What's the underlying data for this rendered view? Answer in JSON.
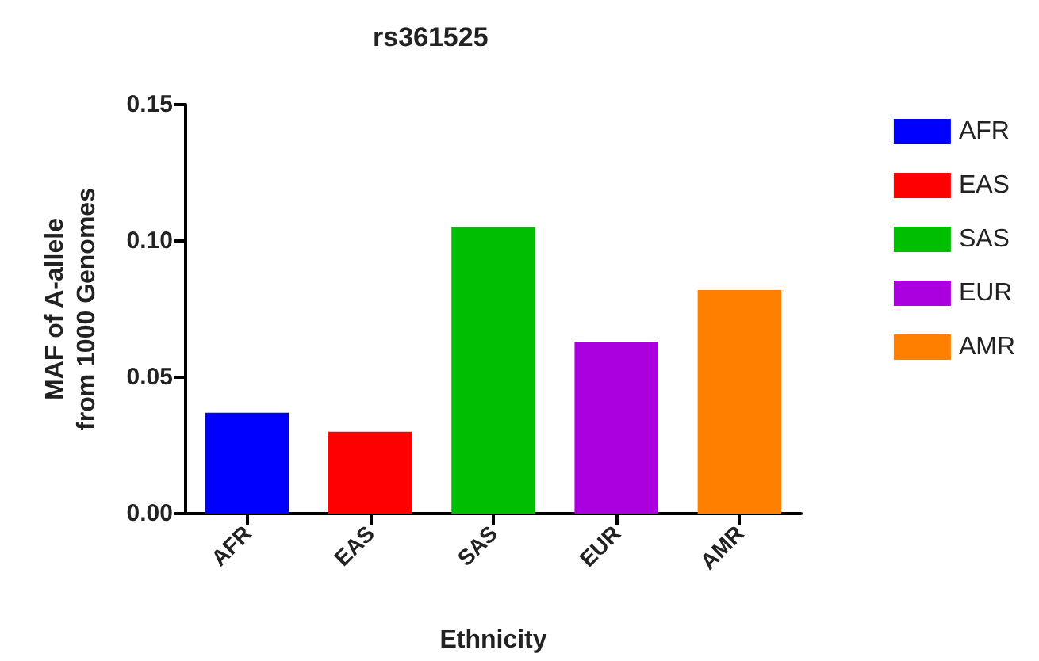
{
  "chart_data": {
    "type": "bar",
    "title": "rs361525",
    "xlabel": "Ethnicity",
    "ylabel": "MAF of A-allele\nfrom 1000 Genomes",
    "categories": [
      "AFR",
      "EAS",
      "SAS",
      "EUR",
      "AMR"
    ],
    "series": [
      {
        "name": "AFR",
        "color": "#0000ff",
        "values": [
          0.037,
          null,
          null,
          null,
          null
        ]
      },
      {
        "name": "EAS",
        "color": "#ff0000",
        "values": [
          null,
          0.03,
          null,
          null,
          null
        ]
      },
      {
        "name": "SAS",
        "color": "#00bf00",
        "values": [
          null,
          null,
          0.105,
          null,
          null
        ]
      },
      {
        "name": "EUR",
        "color": "#aa00dd",
        "values": [
          null,
          null,
          null,
          0.063,
          null
        ]
      },
      {
        "name": "AMR",
        "color": "#ff8000",
        "values": [
          null,
          null,
          null,
          null,
          0.082
        ]
      }
    ],
    "ylim": [
      0,
      0.15
    ],
    "yticks": [
      {
        "value": 0,
        "label": "0.00"
      },
      {
        "value": 0.05,
        "label": "0.05"
      },
      {
        "value": 0.1,
        "label": "0.10"
      },
      {
        "value": 0.15,
        "label": "0.15"
      }
    ],
    "grid": false,
    "legend": "right"
  }
}
